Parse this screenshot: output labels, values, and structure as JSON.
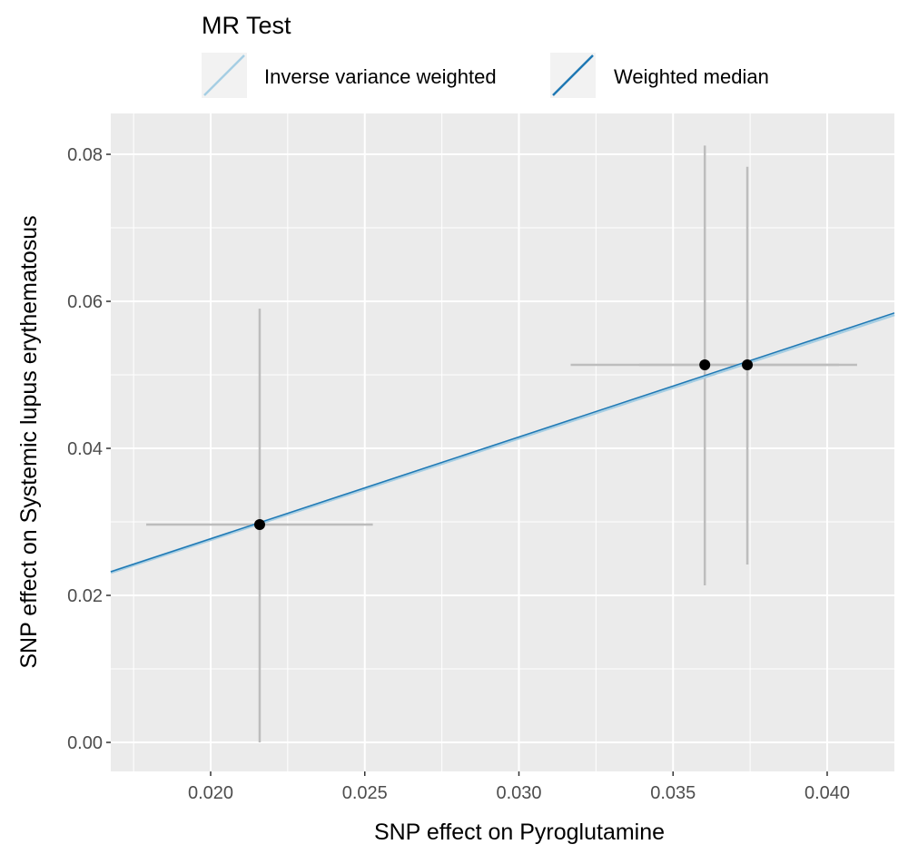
{
  "chart_data": {
    "type": "scatter",
    "title": "",
    "xlabel": "SNP effect on Pyroglutamine",
    "ylabel": "SNP effect on Systemic lupus erythematosus",
    "xlim": [
      0.01676,
      0.04218
    ],
    "ylim": [
      -0.00395,
      0.08556
    ],
    "xticks": [
      0.02,
      0.025,
      0.03,
      0.035,
      0.04
    ],
    "xtick_labels": [
      "0.020",
      "0.025",
      "0.030",
      "0.035",
      "0.040"
    ],
    "yticks": [
      0.0,
      0.02,
      0.04,
      0.06,
      0.08
    ],
    "ytick_labels": [
      "0.00",
      "0.02",
      "0.04",
      "0.06",
      "0.08"
    ],
    "grid": true,
    "legend": {
      "title": "MR Test",
      "placement": "top",
      "entries": [
        {
          "label": "Inverse variance weighted",
          "color": "#a6cee3"
        },
        {
          "label": "Weighted median",
          "color": "#1f78b4"
        }
      ]
    },
    "points": [
      {
        "x": 0.02159,
        "y": 0.02963,
        "xmin": 0.01791,
        "xmax": 0.02526,
        "ymin": 0.0,
        "ymax": 0.059
      },
      {
        "x": 0.03603,
        "y": 0.05136,
        "xmin": 0.03168,
        "xmax": 0.04038,
        "ymin": 0.02136,
        "ymax": 0.0812
      },
      {
        "x": 0.03741,
        "y": 0.05136,
        "xmin": 0.0339,
        "xmax": 0.04097,
        "ymin": 0.0242,
        "ymax": 0.0783
      }
    ],
    "lines": [
      {
        "name": "Inverse variance weighted",
        "intercept": 0,
        "slope": 1.38,
        "color": "#a6cee3"
      },
      {
        "name": "Weighted median",
        "intercept": 0,
        "slope": 1.385,
        "color": "#1f78b4"
      }
    ]
  }
}
